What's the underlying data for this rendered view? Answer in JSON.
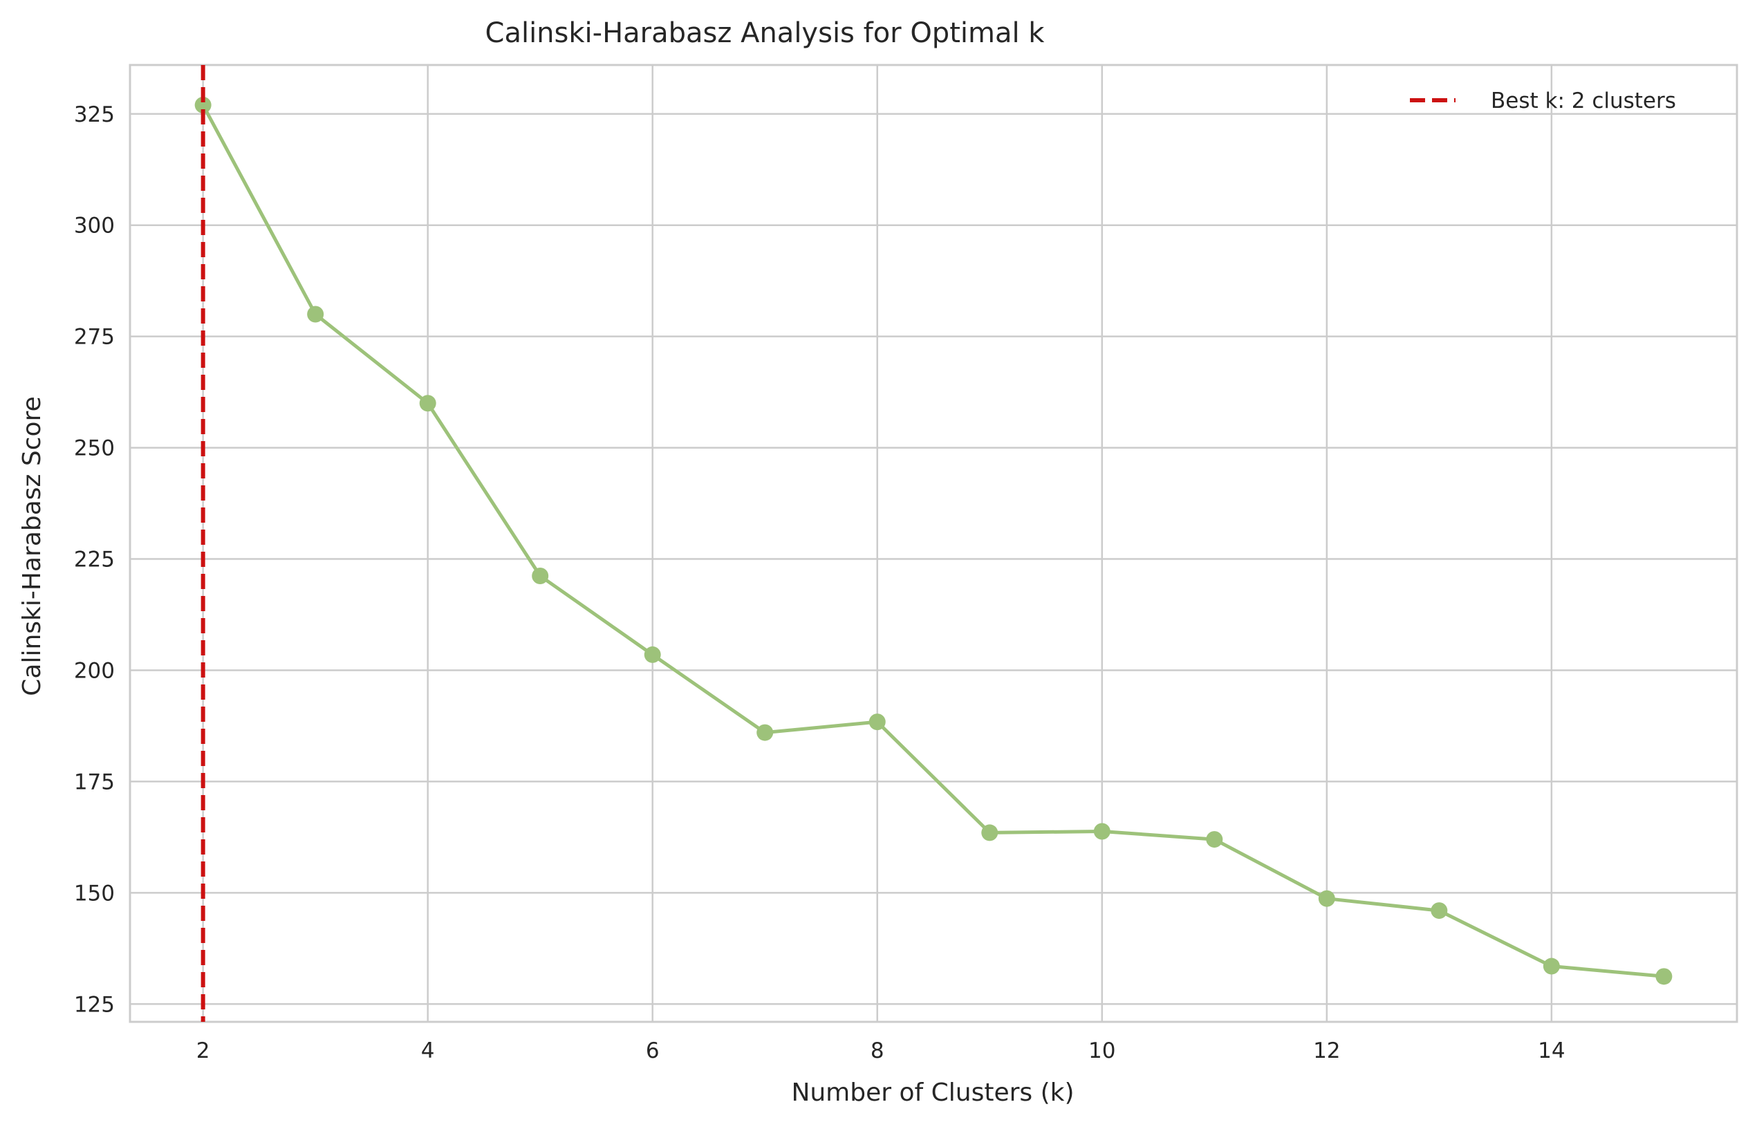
{
  "chart_data": {
    "type": "line",
    "title": "Calinski-Harabasz Analysis for Optimal k",
    "xlabel": "Number of Clusters (k)",
    "ylabel": "Calinski-Harabasz Score",
    "xlim": [
      1.35,
      15.65
    ],
    "ylim": [
      121,
      336
    ],
    "x_ticks": [
      2,
      4,
      6,
      8,
      10,
      12,
      14
    ],
    "y_ticks": [
      125,
      150,
      175,
      200,
      225,
      250,
      275,
      300,
      325
    ],
    "grid": true,
    "legend_position": "top-right",
    "series": [
      {
        "x": [
          2,
          3,
          4,
          5,
          6,
          7,
          8,
          9,
          10,
          11,
          12,
          13,
          14,
          15
        ],
        "values": [
          327.0,
          280.0,
          260.0,
          221.2,
          203.5,
          186.0,
          188.4,
          163.5,
          163.8,
          162.0,
          148.7,
          146.0,
          133.5,
          131.2
        ],
        "color": "#9dc27a",
        "marker": "circle"
      }
    ],
    "reference_line": {
      "x": 2,
      "label": "Best k: 2 clusters",
      "color": "#cc1111",
      "style": "dashed"
    }
  }
}
